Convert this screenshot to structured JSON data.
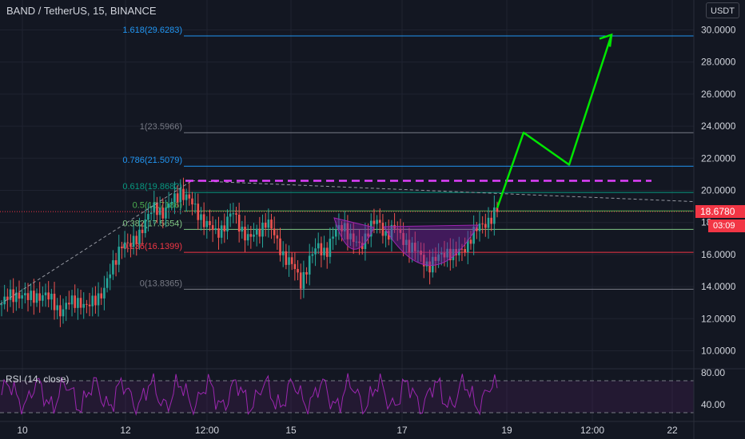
{
  "header": {
    "symbol_legend": "BAND / TetherUS, 15, BINANCE",
    "currency_button": "USDT"
  },
  "indicator": {
    "rsi_legend": "RSI (14, close)"
  },
  "price_axis": {
    "ticks": [
      "30.0000",
      "28.0000",
      "26.0000",
      "24.0000",
      "22.0000",
      "20.0000",
      "18",
      "16.0000",
      "14.0000",
      "12.0000",
      "10.0000"
    ],
    "current_price": "18.6780",
    "countdown": "03:09"
  },
  "rsi_axis": {
    "ticks": [
      "80.00",
      "40.00"
    ]
  },
  "time_axis": {
    "ticks": [
      "10",
      "12",
      "12:00",
      "15",
      "17",
      "19",
      "12:00",
      "22"
    ]
  },
  "fib_levels": [
    {
      "label": "1.618(29.6283)",
      "value": 29.6283,
      "color": "#2196f3"
    },
    {
      "label": "1(23.5966)",
      "value": 23.5966,
      "color": "#787b86"
    },
    {
      "label": "0.786(21.5079)",
      "value": 21.5079,
      "color": "#2196f3"
    },
    {
      "label": "0.618(19.8682)",
      "value": 19.8682,
      "color": "#089981"
    },
    {
      "label": "0.5(18.7186)",
      "value": 18.7186,
      "color": "#4caf50"
    },
    {
      "label": "0.382(17.5654)",
      "value": 17.5654,
      "color": "#81c784"
    },
    {
      "label": "0.236(16.1399)",
      "value": 16.1399,
      "color": "#f23645"
    },
    {
      "label": "0(13.8365)",
      "value": 13.8365,
      "color": "#787b86"
    }
  ],
  "colors": {
    "background": "#131722",
    "grid": "#1f2330",
    "candle_up": "#26a69a",
    "candle_down": "#ef5350",
    "rsi_line": "#9c27b0",
    "projection": "#00e600",
    "resistance_dashed": "#e040fb",
    "cup_fill": "#7b1fa2"
  },
  "chart_data": {
    "type": "candlestick",
    "y_range": [
      9.0,
      31.0
    ],
    "rsi_range": [
      25,
      90
    ],
    "x_domain": [
      "10",
      "22"
    ],
    "resistance_level": 20.6,
    "projection_path": [
      18.9,
      23.6,
      21.6,
      29.7
    ],
    "price_walk": [
      12.9,
      13.4,
      13.6,
      13.2,
      13.5,
      13.4,
      13.1,
      12.4,
      13.0,
      13.2,
      12.6,
      13.3,
      13.8,
      15.2,
      16.8,
      16.4,
      17.3,
      18.2,
      19.0,
      18.6,
      19.3,
      20.0,
      19.3,
      18.6,
      17.9,
      17.3,
      17.8,
      18.6,
      17.7,
      16.9,
      17.4,
      18.2,
      17.0,
      16.0,
      15.3,
      14.3,
      15.6,
      16.5,
      16.2,
      17.3,
      18.0,
      16.8,
      16.5,
      17.7,
      18.0,
      17.3,
      17.6,
      17.0,
      16.4,
      15.9,
      15.3,
      15.7,
      16.3,
      15.9,
      16.3,
      17.2,
      17.7,
      18.2,
      18.7
    ]
  }
}
